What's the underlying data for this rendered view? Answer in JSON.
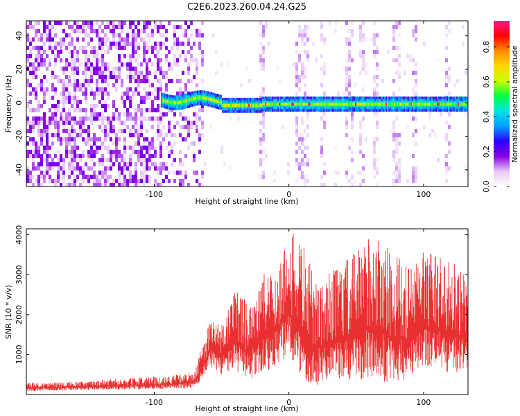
{
  "title": "C2E6.2023.260.04.24.G25",
  "chart_data": [
    {
      "type": "heatmap",
      "xlabel": "Height of straight line (km)",
      "ylabel": "Frequency (Hz)",
      "xlim": [
        -195,
        133
      ],
      "ylim": [
        -50,
        49
      ],
      "xticks": [
        "-100",
        "0",
        "100"
      ],
      "xtick_values": [
        -100,
        0,
        100
      ],
      "yticks": [
        "-40",
        "-20",
        "0",
        "20",
        "40"
      ],
      "ytick_values": [
        -40,
        -20,
        0,
        20,
        40
      ],
      "colorbar": {
        "label": "Normalized spectral amplitude",
        "ticks": [
          "0.0",
          "0.2",
          "0.4",
          "0.6",
          "0.8"
        ],
        "tick_values": [
          0.0,
          0.2,
          0.4,
          0.6,
          0.8
        ],
        "range": [
          0,
          0.95
        ],
        "colors": [
          "#ffffff",
          "#e6c8f5",
          "#8a00e6",
          "#2a00ff",
          "#00a0ff",
          "#00e5e5",
          "#00ff40",
          "#c8ff00",
          "#ffd700",
          "#ff8c00",
          "#ff0000",
          "#ff1493"
        ]
      },
      "features": {
        "noise_region_x": [
          -195,
          -63
        ],
        "carrier_start_x": -95,
        "carrier_center_hz": 0,
        "carrier_band_hz": [
          -4,
          4
        ],
        "stripe_positions_x": [
          -20,
          8,
          12,
          25,
          45,
          55,
          65,
          80,
          93,
          118
        ]
      }
    },
    {
      "type": "line",
      "xlabel": "Height of straight line (km)",
      "ylabel": "SNR (10 * v/v)",
      "xlim": [
        -195,
        133
      ],
      "ylim": [
        0,
        4150
      ],
      "xticks": [
        "-100",
        "0",
        "100"
      ],
      "xtick_values": [
        -100,
        0,
        100
      ],
      "yticks": [
        "1000",
        "2000",
        "3000",
        "4000"
      ],
      "ytick_values": [
        1000,
        2000,
        3000,
        4000
      ],
      "series": [
        {
          "color": "#e83030",
          "x": [
            -195,
            -170,
            -150,
            -130,
            -110,
            -90,
            -80,
            -70,
            -62,
            -58,
            -50,
            -40,
            -30,
            -20,
            -10,
            0,
            10,
            20,
            30,
            40,
            50,
            60,
            70,
            80,
            90,
            100,
            110,
            120,
            133
          ],
          "y_min": [
            80,
            100,
            110,
            120,
            130,
            140,
            150,
            160,
            500,
            700,
            500,
            600,
            300,
            500,
            700,
            900,
            300,
            200,
            400,
            300,
            300,
            400,
            300,
            300,
            300,
            700,
            600,
            500,
            600
          ],
          "y_max": [
            300,
            310,
            330,
            400,
            430,
            460,
            520,
            560,
            1600,
            1900,
            1800,
            2600,
            2500,
            3000,
            3200,
            4100,
            3900,
            2800,
            3100,
            3300,
            3600,
            4100,
            3800,
            3500,
            3200,
            3700,
            3500,
            3400,
            2900
          ]
        }
      ]
    }
  ]
}
